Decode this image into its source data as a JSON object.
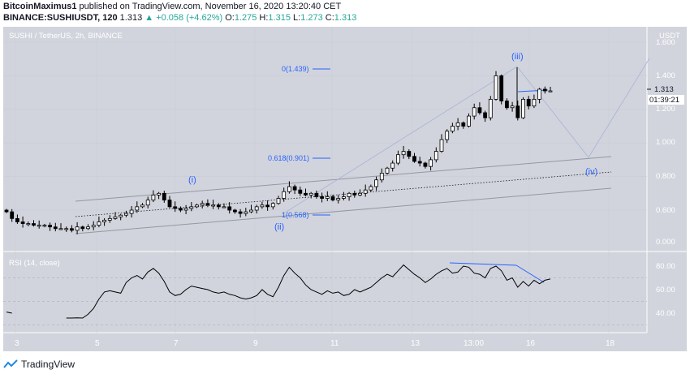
{
  "header": {
    "publisher_line": {
      "user": "BitcoinMaximus1",
      "rest": "published on TradingView.com, November 16, 2020 13:20:40 CET"
    },
    "symbol_line": {
      "symbol": "BINANCE:SUSHIUSDT, 120",
      "last": "1.313",
      "change": "▲ +0.058 (+4.62%)",
      "o_label": "O:",
      "o": "1.275",
      "h_label": "H:",
      "h": "1.315",
      "l_label": "L:",
      "l": "1.273",
      "c_label": "C:",
      "c": "1.313"
    }
  },
  "pane_title": "SUSHI / TetherUS, 2h, BINANCE",
  "price_axis": {
    "currency": "USDT",
    "ticks": [
      "1.600",
      "1.400",
      "1.200",
      "1.000",
      "0.800",
      "0.600",
      "0.000"
    ]
  },
  "price_tag": {
    "price": "1.313",
    "countdown": "01:39:21"
  },
  "rsi_pane": {
    "title": "RSI (14, close)",
    "ticks": [
      "80.00",
      "60.00",
      "40.00"
    ]
  },
  "x_axis": {
    "labels": [
      "3",
      "5",
      "7",
      "9",
      "11",
      "13",
      "13:00",
      "16",
      "18"
    ]
  },
  "footer": {
    "brand": "TradingView"
  },
  "chart_data": {
    "type": "candlestick",
    "title": "SUSHI / TetherUS, 2h, BINANCE",
    "ylim": [
      0.0,
      1.68
    ],
    "y_label": "USDT",
    "annotations": [
      {
        "text": "(i)",
        "x": "Nov 7",
        "y": 0.72
      },
      {
        "text": "(ii)",
        "x": "Nov 10",
        "y": 0.53
      },
      {
        "text": "(iii)",
        "x": "Nov 15",
        "y": 1.45
      },
      {
        "text": "(iv)",
        "x": "Nov 17",
        "y": 0.85
      },
      {
        "text": "0(1.439)",
        "level": 1.439
      },
      {
        "text": "0.618(0.901)",
        "level": 0.901
      },
      {
        "text": "1(0.568)",
        "level": 0.568
      }
    ],
    "channel": {
      "upper": [
        0.65,
        0.91
      ],
      "middle": [
        0.56,
        0.82
      ],
      "lower": [
        0.46,
        0.73
      ]
    },
    "price_path": [
      0.59,
      0.55,
      0.53,
      0.52,
      0.52,
      0.51,
      0.51,
      0.51,
      0.5,
      0.49,
      0.49,
      0.49,
      0.48,
      0.5,
      0.49,
      0.5,
      0.51,
      0.53,
      0.54,
      0.55,
      0.56,
      0.57,
      0.58,
      0.6,
      0.62,
      0.63,
      0.66,
      0.69,
      0.7,
      0.66,
      0.62,
      0.61,
      0.6,
      0.61,
      0.62,
      0.63,
      0.64,
      0.63,
      0.63,
      0.62,
      0.62,
      0.6,
      0.59,
      0.58,
      0.59,
      0.6,
      0.62,
      0.63,
      0.62,
      0.64,
      0.67,
      0.71,
      0.74,
      0.72,
      0.7,
      0.69,
      0.7,
      0.68,
      0.67,
      0.68,
      0.66,
      0.67,
      0.68,
      0.7,
      0.69,
      0.7,
      0.72,
      0.74,
      0.78,
      0.82,
      0.85,
      0.88,
      0.93,
      0.95,
      0.92,
      0.89,
      0.88,
      0.86,
      0.9,
      0.95,
      1.02,
      1.07,
      1.1,
      1.12,
      1.1,
      1.16,
      1.21,
      1.18,
      1.15,
      1.26,
      1.4,
      1.25,
      1.21,
      1.22,
      1.15,
      1.26,
      1.22,
      1.26,
      1.32,
      1.31,
      1.31
    ],
    "rsi": {
      "ylim": [
        25,
        95
      ],
      "levels": [
        70,
        50,
        30
      ],
      "values": [
        41,
        40,
        null,
        null,
        null,
        null,
        null,
        null,
        null,
        null,
        null,
        35,
        34,
        36,
        35,
        39,
        44,
        52,
        58,
        59,
        58,
        57,
        66,
        70,
        72,
        69,
        75,
        78,
        74,
        67,
        58,
        55,
        56,
        60,
        63,
        62,
        61,
        60,
        58,
        57,
        58,
        56,
        55,
        53,
        52,
        53,
        55,
        60,
        56,
        54,
        62,
        72,
        79,
        74,
        70,
        64,
        60,
        58,
        56,
        59,
        57,
        58,
        55,
        56,
        60,
        58,
        60,
        62,
        66,
        70,
        73,
        71,
        76,
        81,
        77,
        73,
        70,
        66,
        69,
        73,
        76,
        78,
        74,
        75,
        80,
        79,
        74,
        73,
        70,
        78,
        80,
        76,
        68,
        70,
        62,
        67,
        63,
        68,
        65,
        68,
        69
      ]
    }
  }
}
